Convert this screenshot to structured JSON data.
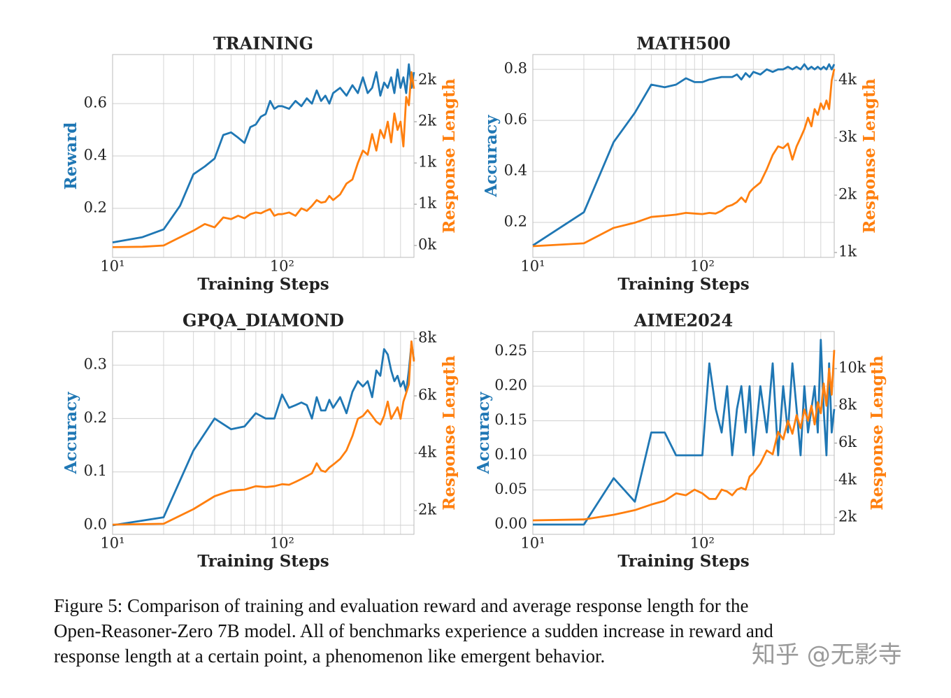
{
  "chart_data": [
    {
      "type": "line",
      "title": "TRAINING",
      "xlabel": "Training Steps",
      "ylabel": "Reward",
      "y2label": "Response Length",
      "log_x": true,
      "grid": true,
      "xlim": [
        10,
        600
      ],
      "xticks": [
        {
          "value": 10,
          "label": "10¹"
        },
        {
          "value": 100,
          "label": "10²"
        }
      ],
      "xminor": [
        20,
        30,
        40,
        50,
        60,
        70,
        80,
        90,
        200,
        300,
        400,
        500
      ],
      "ylim": [
        0.013,
        0.787
      ],
      "yticks": [
        0.2,
        0.4,
        0.6
      ],
      "y2lim": [
        -144,
        2314
      ],
      "y2ticks": [
        {
          "value": 0,
          "label": "0k"
        },
        {
          "value": 500,
          "label": "1k"
        },
        {
          "value": 1000,
          "label": "1k"
        },
        {
          "value": 1500,
          "label": "2k"
        },
        {
          "value": 2000,
          "label": "2k"
        }
      ],
      "x": [
        10,
        15,
        20,
        25,
        30,
        35,
        40,
        45,
        50,
        55,
        60,
        65,
        70,
        75,
        80,
        85,
        90,
        95,
        100,
        110,
        120,
        130,
        140,
        150,
        160,
        170,
        180,
        190,
        200,
        220,
        240,
        260,
        280,
        300,
        320,
        340,
        360,
        380,
        400,
        420,
        440,
        460,
        480,
        500,
        520,
        540,
        560,
        580,
        600
      ],
      "series": [
        {
          "color": "#1f77b4",
          "values": [
            0.07,
            0.09,
            0.12,
            0.21,
            0.33,
            0.36,
            0.39,
            0.48,
            0.49,
            0.47,
            0.45,
            0.51,
            0.52,
            0.55,
            0.56,
            0.61,
            0.58,
            0.59,
            0.59,
            0.58,
            0.61,
            0.59,
            0.62,
            0.6,
            0.65,
            0.61,
            0.63,
            0.6,
            0.64,
            0.66,
            0.63,
            0.67,
            0.64,
            0.7,
            0.64,
            0.66,
            0.72,
            0.63,
            0.68,
            0.66,
            0.7,
            0.64,
            0.73,
            0.66,
            0.7,
            0.64,
            0.75,
            0.66,
            0.72
          ]
        },
        {
          "color": "#ff7f0e",
          "axis": "y2",
          "values": [
            -20,
            -15,
            0,
            100,
            180,
            260,
            220,
            340,
            320,
            360,
            330,
            380,
            400,
            390,
            420,
            440,
            360,
            380,
            380,
            400,
            360,
            450,
            420,
            480,
            550,
            520,
            530,
            600,
            550,
            620,
            750,
            800,
            1000,
            1150,
            1100,
            1350,
            1150,
            1400,
            1300,
            1500,
            1250,
            1600,
            1400,
            1500,
            1200,
            1800,
            1700,
            2100,
            1900
          ]
        }
      ]
    },
    {
      "type": "line",
      "title": "MATH500",
      "xlabel": "Training Steps",
      "ylabel": "Accuracy",
      "y2label": "Response Length",
      "log_x": true,
      "grid": true,
      "xlim": [
        10,
        600
      ],
      "xticks": [
        {
          "value": 10,
          "label": "10¹"
        },
        {
          "value": 100,
          "label": "10²"
        }
      ],
      "xminor": [
        20,
        30,
        40,
        50,
        60,
        70,
        80,
        90,
        200,
        300,
        400,
        500
      ],
      "ylim": [
        0.063,
        0.858
      ],
      "yticks": [
        0.2,
        0.4,
        0.6,
        0.8
      ],
      "y2lim": [
        915,
        4451
      ],
      "y2ticks": [
        {
          "value": 1000,
          "label": "1k"
        },
        {
          "value": 2000,
          "label": "2k"
        },
        {
          "value": 3000,
          "label": "3k"
        },
        {
          "value": 4000,
          "label": "4k"
        }
      ],
      "x": [
        10,
        20,
        30,
        40,
        50,
        60,
        70,
        80,
        90,
        100,
        110,
        120,
        130,
        140,
        150,
        160,
        170,
        180,
        190,
        200,
        220,
        240,
        260,
        280,
        300,
        320,
        340,
        360,
        380,
        400,
        420,
        440,
        460,
        480,
        500,
        520,
        540,
        560,
        580,
        600
      ],
      "series": [
        {
          "color": "#1f77b4",
          "values": [
            0.11,
            0.24,
            0.515,
            0.63,
            0.74,
            0.73,
            0.74,
            0.765,
            0.75,
            0.75,
            0.76,
            0.765,
            0.77,
            0.77,
            0.77,
            0.78,
            0.76,
            0.785,
            0.77,
            0.79,
            0.78,
            0.8,
            0.79,
            0.8,
            0.8,
            0.81,
            0.8,
            0.81,
            0.8,
            0.82,
            0.8,
            0.81,
            0.8,
            0.81,
            0.8,
            0.81,
            0.8,
            0.82,
            0.8,
            0.82
          ]
        },
        {
          "color": "#ff7f0e",
          "axis": "y2",
          "values": [
            1110,
            1160,
            1430,
            1520,
            1620,
            1640,
            1660,
            1690,
            1680,
            1670,
            1690,
            1680,
            1730,
            1800,
            1830,
            1880,
            1960,
            1880,
            2050,
            2120,
            2220,
            2450,
            2700,
            2850,
            2820,
            2900,
            2620,
            2850,
            3000,
            3150,
            3350,
            3200,
            3500,
            3400,
            3600,
            3500,
            3650,
            3500,
            4000,
            4200
          ]
        }
      ]
    },
    {
      "type": "line",
      "title": "GPQA_DIAMOND",
      "xlabel": "Training Steps",
      "ylabel": "Accuracy",
      "y2label": "Response Length",
      "log_x": true,
      "grid": true,
      "xlim": [
        10,
        600
      ],
      "xticks": [
        {
          "value": 10,
          "label": "10¹"
        },
        {
          "value": 100,
          "label": "10²"
        }
      ],
      "xminor": [
        20,
        30,
        40,
        50,
        60,
        70,
        80,
        90,
        200,
        300,
        400,
        500
      ],
      "ylim": [
        -0.017,
        0.363
      ],
      "yticks": [
        {
          "value": 0,
          "label": "0.0"
        },
        0.1,
        0.2,
        0.3
      ],
      "y2lim": [
        1171,
        8244
      ],
      "y2ticks": [
        {
          "value": 2000,
          "label": "2k"
        },
        {
          "value": 4000,
          "label": "4k"
        },
        {
          "value": 6000,
          "label": "6k"
        },
        {
          "value": 8000,
          "label": "8k"
        }
      ],
      "x": [
        10,
        20,
        30,
        40,
        50,
        60,
        70,
        80,
        90,
        100,
        110,
        120,
        130,
        140,
        150,
        160,
        170,
        180,
        190,
        200,
        220,
        240,
        260,
        280,
        300,
        320,
        340,
        360,
        380,
        400,
        420,
        440,
        460,
        480,
        500,
        520,
        540,
        560,
        580,
        600
      ],
      "series": [
        {
          "color": "#1f77b4",
          "values": [
            0,
            0.015,
            0.14,
            0.2,
            0.18,
            0.185,
            0.21,
            0.2,
            0.2,
            0.245,
            0.22,
            0.225,
            0.23,
            0.225,
            0.2,
            0.24,
            0.215,
            0.215,
            0.235,
            0.22,
            0.24,
            0.21,
            0.25,
            0.27,
            0.26,
            0.27,
            0.24,
            0.29,
            0.28,
            0.33,
            0.32,
            0.29,
            0.27,
            0.28,
            0.26,
            0.27,
            0.25,
            0.29,
            0.34,
            0.31
          ]
        },
        {
          "color": "#ff7f0e",
          "axis": "y2",
          "values": [
            1510,
            1540,
            2050,
            2500,
            2700,
            2730,
            2850,
            2820,
            2850,
            2920,
            2900,
            3000,
            3100,
            3200,
            3300,
            3650,
            3400,
            3350,
            3500,
            3600,
            3800,
            4100,
            4600,
            5200,
            5300,
            5500,
            5300,
            5100,
            5000,
            5300,
            5800,
            5200,
            5400,
            5600,
            5200,
            5800,
            6100,
            6400,
            7900,
            7200
          ]
        }
      ]
    },
    {
      "type": "line",
      "title": "AIME2024",
      "xlabel": "Training Steps",
      "ylabel": "Accuracy",
      "y2label": "Response Length",
      "log_x": true,
      "grid": true,
      "xlim": [
        10,
        600
      ],
      "xticks": [
        {
          "value": 10,
          "label": "10¹"
        },
        {
          "value": 100,
          "label": "10²"
        }
      ],
      "xminor": [
        20,
        30,
        40,
        50,
        60,
        70,
        80,
        90,
        200,
        300,
        400,
        500
      ],
      "ylim": [
        -0.0142,
        0.279
      ],
      "yticks": [
        {
          "value": 0,
          "label": "0.00"
        },
        {
          "value": 0.05,
          "label": "0.05"
        },
        {
          "value": 0.1,
          "label": "0.10"
        },
        {
          "value": 0.15,
          "label": "0.15"
        },
        {
          "value": 0.2,
          "label": "0.20"
        },
        {
          "value": 0.25,
          "label": "0.25"
        }
      ],
      "y2lim": [
        1099,
        11990
      ],
      "y2ticks": [
        {
          "value": 2000,
          "label": "2k"
        },
        {
          "value": 4000,
          "label": "4k"
        },
        {
          "value": 6000,
          "label": "6k"
        },
        {
          "value": 8000,
          "label": "8k"
        },
        {
          "value": 10000,
          "label": "10k"
        }
      ],
      "x": [
        10,
        20,
        30,
        40,
        50,
        60,
        70,
        80,
        90,
        100,
        110,
        120,
        130,
        140,
        150,
        160,
        170,
        180,
        190,
        200,
        220,
        240,
        260,
        280,
        300,
        320,
        340,
        360,
        380,
        400,
        420,
        440,
        460,
        480,
        500,
        520,
        540,
        560,
        580,
        600
      ],
      "series": [
        {
          "color": "#1f77b4",
          "values": [
            0,
            0,
            0.067,
            0.033,
            0.133,
            0.133,
            0.1,
            0.1,
            0.1,
            0.1,
            0.233,
            0.167,
            0.133,
            0.2,
            0.1,
            0.167,
            0.2,
            0.133,
            0.2,
            0.1,
            0.2,
            0.133,
            0.233,
            0.1,
            0.2,
            0.133,
            0.233,
            0.167,
            0.1,
            0.2,
            0.133,
            0.167,
            0.2,
            0.133,
            0.267,
            0.167,
            0.1,
            0.233,
            0.133,
            0.167
          ]
        },
        {
          "color": "#ff7f0e",
          "axis": "y2",
          "values": [
            1850,
            1900,
            2150,
            2400,
            2700,
            2900,
            3300,
            3200,
            3500,
            3300,
            3000,
            3000,
            3500,
            3400,
            3200,
            3500,
            3600,
            3500,
            4200,
            4400,
            4900,
            5600,
            5400,
            6600,
            6200,
            7200,
            6500,
            7500,
            6800,
            7800,
            7200,
            8000,
            7000,
            8200,
            7600,
            9200,
            8000,
            10000,
            8600,
            11000
          ]
        }
      ]
    }
  ],
  "caption": [
    "Figure 5: Comparison of training and evaluation reward and average response length for the",
    "Open-Reasoner-Zero 7B model.  All of benchmarks experience a sudden increase in reward and",
    "response length at a certain point, a phenomenon like emergent behavior."
  ],
  "watermark": "知乎 @无影寺"
}
